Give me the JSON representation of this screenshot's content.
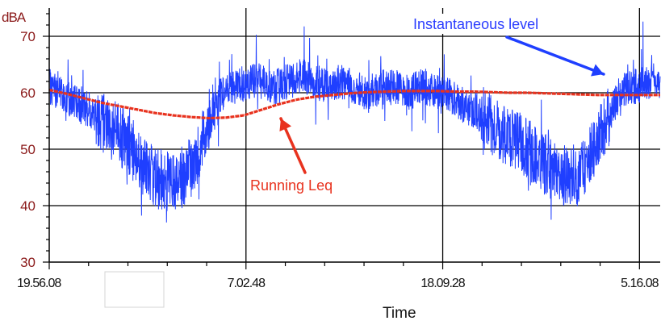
{
  "chart_data": {
    "type": "line",
    "title": "",
    "ylabel": "dBA",
    "xlabel": "Time",
    "ylim": [
      30,
      75
    ],
    "yticks": [
      30,
      40,
      50,
      60,
      70
    ],
    "xlim_hours": [
      0,
      34.5
    ],
    "xticks": [
      {
        "label": "19.56.08",
        "hour": 0
      },
      {
        "label": "7.02.48",
        "hour": 11.11
      },
      {
        "label": "18.09.28",
        "hour": 22.22
      },
      {
        "label": "5.16.08",
        "hour": 33.33
      }
    ],
    "grid": true,
    "legend": "none",
    "series": [
      {
        "name": "Instantaneous level",
        "color": "#1f3fff",
        "points": [
          [
            0,
            61
          ],
          [
            0.75,
            60
          ],
          [
            1.5,
            58
          ],
          [
            2.25,
            57
          ],
          [
            3,
            55
          ],
          [
            3.75,
            53
          ],
          [
            4.5,
            51
          ],
          [
            5.25,
            47
          ],
          [
            6,
            45
          ],
          [
            6.75,
            44
          ],
          [
            7.5,
            45
          ],
          [
            8.25,
            48
          ],
          [
            9,
            55
          ],
          [
            9.75,
            60
          ],
          [
            10.5,
            61
          ],
          [
            11.25,
            62
          ],
          [
            12,
            62
          ],
          [
            12.75,
            61
          ],
          [
            13.5,
            62
          ],
          [
            14.25,
            63
          ],
          [
            15,
            62
          ],
          [
            15.75,
            61
          ],
          [
            16.5,
            62
          ],
          [
            17.25,
            61
          ],
          [
            18,
            60
          ],
          [
            18.75,
            61
          ],
          [
            19.5,
            61
          ],
          [
            20.25,
            60
          ],
          [
            21,
            61
          ],
          [
            21.75,
            60
          ],
          [
            22.5,
            60
          ],
          [
            23.25,
            58
          ],
          [
            24,
            57
          ],
          [
            24.75,
            55
          ],
          [
            25.5,
            53
          ],
          [
            26.25,
            52
          ],
          [
            27,
            50
          ],
          [
            27.75,
            48
          ],
          [
            28.5,
            46
          ],
          [
            29.25,
            45
          ],
          [
            30,
            46
          ],
          [
            30.75,
            50
          ],
          [
            31.5,
            55
          ],
          [
            32.25,
            60
          ],
          [
            33,
            61
          ],
          [
            33.75,
            62
          ],
          [
            34.5,
            62
          ]
        ]
      },
      {
        "name": "Running Leq",
        "color": "#e8321e",
        "points": [
          [
            0,
            60.5
          ],
          [
            1,
            59.8
          ],
          [
            2,
            59
          ],
          [
            3,
            58.2
          ],
          [
            4,
            57.6
          ],
          [
            5,
            57
          ],
          [
            6,
            56.4
          ],
          [
            7,
            56
          ],
          [
            8,
            55.7
          ],
          [
            9,
            55.5
          ],
          [
            10,
            55.6
          ],
          [
            11,
            56
          ],
          [
            12,
            57
          ],
          [
            13,
            58
          ],
          [
            14,
            58.8
          ],
          [
            15,
            59.3
          ],
          [
            16,
            59.6
          ],
          [
            17,
            59.9
          ],
          [
            18,
            60.1
          ],
          [
            19,
            60.2
          ],
          [
            20,
            60.3
          ],
          [
            21,
            60.3
          ],
          [
            22,
            60.3
          ],
          [
            23,
            60.2
          ],
          [
            24,
            60.2
          ],
          [
            25,
            60.1
          ],
          [
            26,
            60
          ],
          [
            27,
            60
          ],
          [
            28,
            59.9
          ],
          [
            29,
            59.8
          ],
          [
            30,
            59.7
          ],
          [
            31,
            59.6
          ],
          [
            32,
            59.6
          ],
          [
            33,
            59.6
          ],
          [
            34.5,
            59.6
          ]
        ]
      }
    ],
    "annotations": [
      {
        "text": "Instantaneous level",
        "color": "#2a3cff"
      },
      {
        "text": "Running Leq",
        "color": "#e8321e"
      }
    ]
  }
}
